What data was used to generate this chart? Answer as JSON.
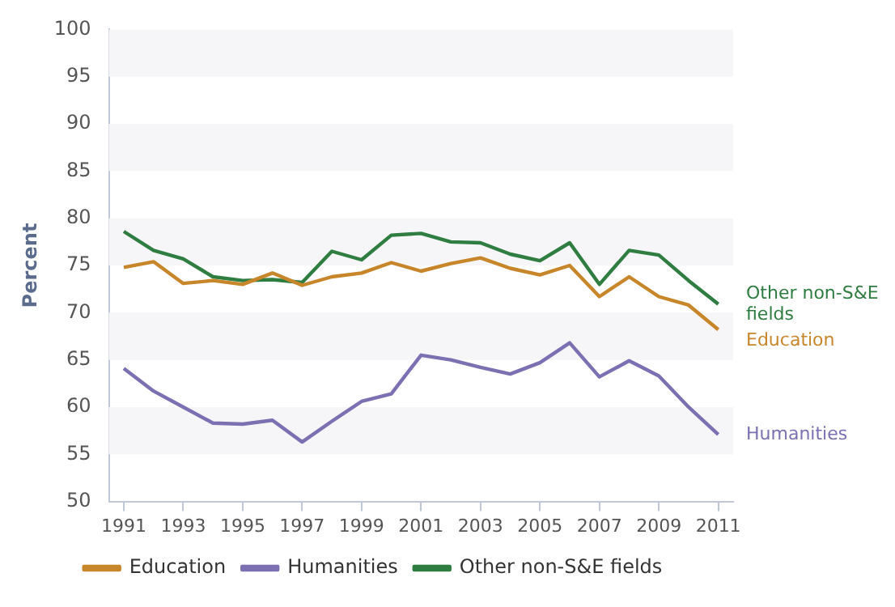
{
  "chart_data": {
    "type": "line",
    "ylabel": "Percent",
    "x": [
      1991,
      1992,
      1993,
      1994,
      1995,
      1996,
      1997,
      1998,
      1999,
      2000,
      2001,
      2002,
      2003,
      2004,
      2005,
      2006,
      2007,
      2008,
      2009,
      2010,
      2011
    ],
    "xlim": [
      1990.5,
      2011.5
    ],
    "xticks": [
      1991,
      1993,
      1995,
      1997,
      1999,
      2001,
      2003,
      2005,
      2007,
      2009,
      2011
    ],
    "ylim": [
      50,
      100
    ],
    "yticks": [
      50,
      55,
      60,
      65,
      70,
      75,
      80,
      85,
      90,
      95,
      100
    ],
    "legend": "bottom",
    "marker": "none",
    "line_style": "solid",
    "series": [
      {
        "name": "Education",
        "color": "#c8862b",
        "values": [
          74.8,
          75.4,
          73.1,
          73.4,
          73.0,
          74.2,
          72.9,
          73.8,
          74.2,
          75.3,
          74.4,
          75.2,
          75.8,
          74.7,
          74.0,
          75.0,
          71.7,
          73.8,
          71.7,
          70.8,
          68.2
        ]
      },
      {
        "name": "Humanities",
        "color": "#7c70b2",
        "values": [
          64.1,
          61.7,
          60.0,
          58.3,
          58.2,
          58.6,
          56.3,
          58.5,
          60.6,
          61.4,
          65.5,
          65.0,
          64.2,
          63.5,
          64.7,
          66.8,
          63.2,
          64.9,
          63.3,
          60.0,
          57.1
        ]
      },
      {
        "name": "Other non-S&E fields",
        "color": "#2f7d41",
        "values": [
          78.6,
          76.6,
          75.7,
          73.8,
          73.4,
          73.5,
          73.2,
          76.5,
          75.6,
          78.2,
          78.4,
          77.5,
          77.4,
          76.2,
          75.5,
          77.4,
          73.0,
          76.6,
          76.1,
          73.4,
          70.9
        ]
      }
    ]
  }
}
